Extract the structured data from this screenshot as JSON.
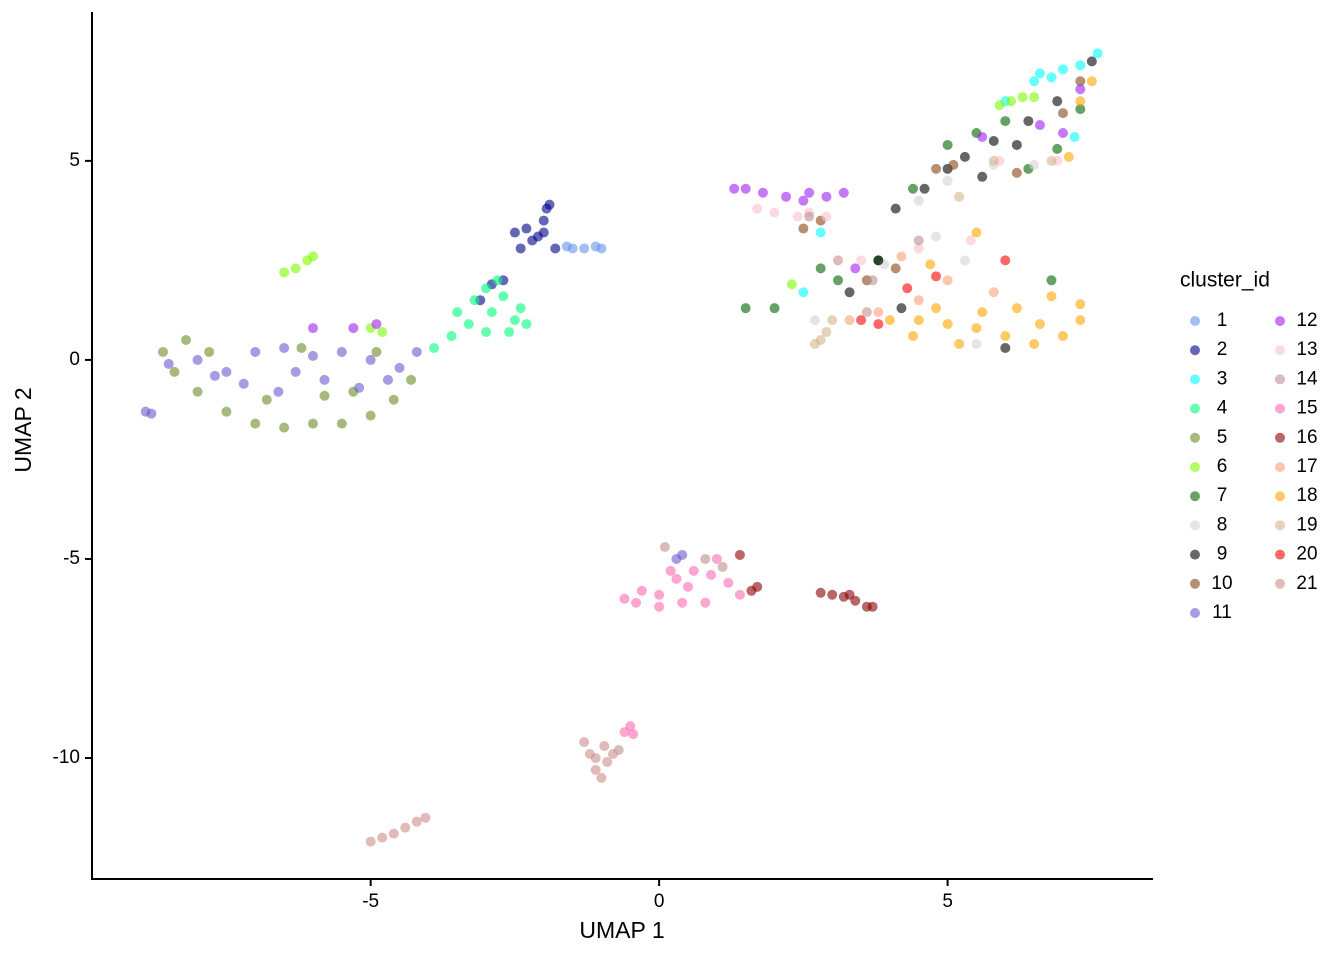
{
  "chart_data": {
    "type": "scatter",
    "x_label": "UMAP 1",
    "y_label": "UMAP 2",
    "legend_title": "cluster_id",
    "legend_position": "right",
    "xlim": [
      -9.83,
      8.56
    ],
    "ylim": [
      -13.04,
      8.74
    ],
    "xticks": [
      -5,
      0,
      5
    ],
    "yticks": [
      -10,
      -5,
      0,
      5
    ],
    "series": [
      {
        "name": "1",
        "color": "#6495ED",
        "x": [
          -1.3,
          -1.1,
          -1.0,
          -1.5,
          -1.6
        ],
        "y": [
          2.8,
          2.85,
          2.8,
          2.8,
          2.85
        ]
      },
      {
        "name": "2",
        "color": "#00008B",
        "x": [
          -2.3,
          -2.2,
          -2.0,
          -1.95,
          -1.9,
          -2.5,
          -2.4,
          -2.1,
          -1.8,
          -2.7,
          -2.9,
          -3.1,
          -2.0
        ],
        "y": [
          3.3,
          3.0,
          3.5,
          3.8,
          3.9,
          3.2,
          2.8,
          3.1,
          2.8,
          2.0,
          1.9,
          1.5,
          3.2
        ]
      },
      {
        "name": "3",
        "color": "#00FFFF",
        "x": [
          6.5,
          6.8,
          7.0,
          7.3,
          7.6,
          6.6,
          2.8,
          2.5,
          7.2,
          6.0
        ],
        "y": [
          7.0,
          7.1,
          7.3,
          7.4,
          7.7,
          7.2,
          3.2,
          1.7,
          5.6,
          6.5
        ]
      },
      {
        "name": "4",
        "color": "#00FF7F",
        "x": [
          -3.5,
          -3.2,
          -3.0,
          -2.8,
          -2.5,
          -2.3,
          -2.6,
          -3.0,
          -3.3,
          -3.6,
          -3.9,
          -2.9,
          -2.4,
          -2.7
        ],
        "y": [
          1.2,
          1.5,
          1.8,
          2.0,
          1.0,
          0.9,
          0.7,
          0.7,
          0.9,
          0.6,
          0.3,
          1.2,
          1.3,
          1.6
        ]
      },
      {
        "name": "5",
        "color": "#6B8E23",
        "x": [
          -8.6,
          -8.4,
          -8.0,
          -7.5,
          -7.0,
          -6.5,
          -6.0,
          -5.5,
          -5.0,
          -4.6,
          -4.3,
          -7.8,
          -6.8,
          -5.8,
          -4.9,
          -8.2,
          -6.2,
          -5.3
        ],
        "y": [
          0.2,
          -0.3,
          -0.8,
          -1.3,
          -1.6,
          -1.7,
          -1.6,
          -1.6,
          -1.4,
          -1.0,
          -0.5,
          0.2,
          -1.0,
          -0.9,
          0.2,
          0.5,
          0.3,
          -0.8
        ]
      },
      {
        "name": "6",
        "color": "#7CFC00",
        "x": [
          -6.3,
          -6.1,
          -6.0,
          -6.5,
          -5.0,
          -4.8,
          6.1,
          6.3,
          5.9,
          6.5,
          2.3
        ],
        "y": [
          2.3,
          2.5,
          2.6,
          2.2,
          0.8,
          0.7,
          6.5,
          6.6,
          6.4,
          6.6,
          1.9
        ]
      },
      {
        "name": "7",
        "color": "#006400",
        "x": [
          5.0,
          5.5,
          6.0,
          6.4,
          6.9,
          4.4,
          3.8,
          2.8,
          2.0,
          1.5,
          3.1,
          6.8,
          7.3
        ],
        "y": [
          5.4,
          5.7,
          6.0,
          4.8,
          5.3,
          4.3,
          2.5,
          2.3,
          1.3,
          1.3,
          2.0,
          2.0,
          6.3
        ]
      },
      {
        "name": "8",
        "color": "#D3D3D3",
        "x": [
          4.5,
          5.0,
          5.8,
          6.5,
          4.8,
          5.3,
          3.9,
          5.5,
          2.7
        ],
        "y": [
          4.0,
          4.5,
          4.9,
          4.9,
          3.1,
          2.5,
          2.4,
          0.4,
          1.0
        ]
      },
      {
        "name": "9",
        "color": "#000000",
        "x": [
          4.1,
          4.6,
          5.0,
          5.3,
          5.8,
          6.4,
          6.9,
          7.5,
          6.2,
          3.8,
          3.3,
          4.2,
          6.0,
          5.6
        ],
        "y": [
          3.8,
          4.3,
          4.8,
          5.1,
          5.5,
          6.0,
          6.5,
          7.5,
          5.4,
          2.5,
          1.7,
          1.3,
          0.3,
          4.6
        ]
      },
      {
        "name": "10",
        "color": "#8B4513",
        "x": [
          2.5,
          3.6,
          4.1,
          4.8,
          5.1,
          6.2,
          7.0,
          7.3,
          2.8
        ],
        "y": [
          3.3,
          2.0,
          2.3,
          4.8,
          4.9,
          4.7,
          6.2,
          7.0,
          3.5
        ]
      },
      {
        "name": "11",
        "color": "#6A5ACD",
        "x": [
          -8.5,
          -8.0,
          -7.5,
          -7.0,
          -6.5,
          -6.0,
          -5.5,
          -5.0,
          -4.5,
          -4.2,
          -7.2,
          -6.6,
          -5.8,
          -5.2,
          -4.7,
          -6.3,
          -7.7,
          -8.9,
          -8.8,
          0.3,
          0.4
        ],
        "y": [
          -0.1,
          0.0,
          -0.3,
          0.2,
          0.3,
          0.1,
          0.2,
          0.0,
          -0.2,
          0.2,
          -0.6,
          -0.8,
          -0.5,
          -0.7,
          -0.5,
          -0.3,
          -0.4,
          -1.3,
          -1.35,
          -5.0,
          -4.9
        ]
      },
      {
        "name": "12",
        "color": "#A020F0",
        "x": [
          1.3,
          1.5,
          1.8,
          2.2,
          2.5,
          2.9,
          3.2,
          2.6,
          -6.0,
          -5.3,
          -4.9,
          7.0,
          6.6,
          7.3,
          3.4,
          5.6
        ],
        "y": [
          4.3,
          4.3,
          4.2,
          4.1,
          4.0,
          4.1,
          4.2,
          4.2,
          0.8,
          0.8,
          0.9,
          5.7,
          5.9,
          6.8,
          2.3,
          5.6
        ]
      },
      {
        "name": "13",
        "color": "#FFC0CB",
        "x": [
          1.7,
          2.0,
          2.4,
          2.6,
          2.9,
          3.5,
          4.5,
          5.4,
          5.9,
          6.9
        ],
        "y": [
          3.8,
          3.7,
          3.6,
          3.7,
          3.6,
          2.5,
          2.8,
          3.0,
          5.0,
          5.0
        ]
      },
      {
        "name": "14",
        "color": "#BC8F8F",
        "x": [
          2.6,
          4.5,
          0.8,
          1.1,
          0.1,
          3.7,
          -0.7
        ],
        "y": [
          3.6,
          3.0,
          -5.0,
          -5.2,
          -4.7,
          2.0,
          -9.8
        ]
      },
      {
        "name": "15",
        "color": "#FF69B4",
        "x": [
          -0.6,
          -0.3,
          0,
          0.3,
          0.6,
          0.9,
          1.2,
          1.4,
          0.8,
          0.4,
          0.0,
          -0.4,
          0.2,
          1.0,
          -0.5,
          -0.45,
          -0.6,
          0.5
        ],
        "y": [
          -6.0,
          -5.8,
          -5.9,
          -5.5,
          -5.3,
          -5.4,
          -5.6,
          -5.9,
          -6.1,
          -6.1,
          -6.2,
          -6.1,
          -5.3,
          -5.0,
          -9.2,
          -9.4,
          -9.35,
          -5.7
        ]
      },
      {
        "name": "16",
        "color": "#8B0000",
        "x": [
          2.8,
          3.0,
          3.2,
          3.4,
          3.6,
          3.7,
          3.3,
          1.4,
          1.7,
          1.6
        ],
        "y": [
          -5.85,
          -5.9,
          -5.95,
          -6.05,
          -6.2,
          -6.2,
          -5.9,
          -4.9,
          -5.7,
          -5.8
        ]
      },
      {
        "name": "17",
        "color": "#FFA07A",
        "x": [
          3.8,
          4.5,
          5.0,
          3.3,
          4.2,
          5.8
        ],
        "y": [
          1.2,
          1.5,
          2.0,
          1.0,
          2.6,
          1.7
        ]
      },
      {
        "name": "18",
        "color": "#FFA500",
        "x": [
          4.0,
          4.5,
          5.0,
          5.5,
          6.0,
          6.5,
          7.0,
          7.3,
          7.3,
          6.8,
          6.2,
          5.6,
          4.8,
          4.4,
          6.6,
          5.2,
          7.1,
          7.3,
          7.5,
          5.5,
          4.7
        ],
        "y": [
          1.0,
          1.0,
          0.9,
          0.8,
          0.6,
          0.4,
          0.6,
          1.0,
          1.4,
          1.6,
          1.3,
          1.2,
          1.3,
          0.6,
          0.9,
          0.4,
          5.1,
          6.5,
          7.0,
          3.2,
          2.4
        ]
      },
      {
        "name": "19",
        "color": "#D2B48C",
        "x": [
          2.7,
          2.9,
          3.0,
          2.8,
          5.8,
          5.2,
          6.8
        ],
        "y": [
          0.4,
          0.7,
          1.0,
          0.5,
          5.0,
          4.1,
          5.0
        ]
      },
      {
        "name": "20",
        "color": "#FF0000",
        "x": [
          3.5,
          4.3,
          4.8,
          3.8,
          6.0
        ],
        "y": [
          1.0,
          1.8,
          2.1,
          0.9,
          2.5
        ]
      },
      {
        "name": "21",
        "color": "#CD8C8C",
        "x": [
          -5.0,
          -4.8,
          -4.6,
          -4.4,
          -4.2,
          -4.05,
          -1.3,
          -1.2,
          -1.1,
          -1.0,
          -0.9,
          -0.8,
          -1.1,
          -0.95,
          3.6,
          3.1
        ],
        "y": [
          -12.1,
          -12.0,
          -11.9,
          -11.75,
          -11.6,
          -11.5,
          -9.6,
          -9.9,
          -10.3,
          -10.5,
          -10.1,
          -9.9,
          -10.0,
          -9.7,
          1.2,
          2.5
        ]
      }
    ]
  }
}
